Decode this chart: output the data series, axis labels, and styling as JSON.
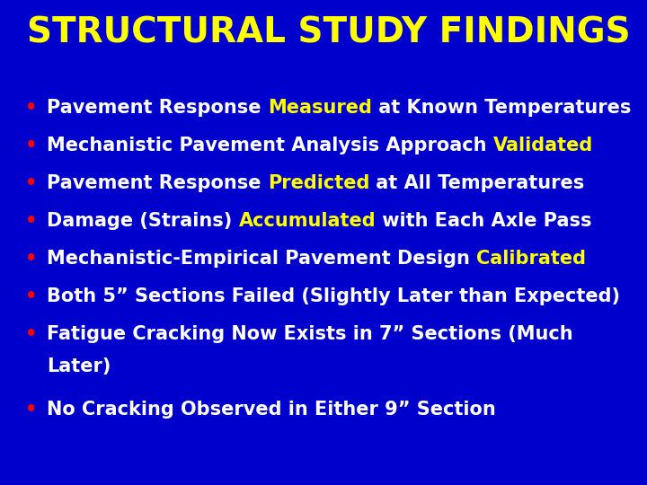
{
  "background_color": "#0000cc",
  "title": "STRUCTURAL STUDY FINDINGS",
  "title_color": "#ffff00",
  "title_fontsize": 28,
  "bullet_color": "#ff0000",
  "bullet_items": [
    {
      "parts": [
        {
          "text": "Pavement Response ",
          "color": "#ffffff"
        },
        {
          "text": "Measured",
          "color": "#ffff00"
        },
        {
          "text": " at Known Temperatures",
          "color": "#ffffff"
        }
      ]
    },
    {
      "parts": [
        {
          "text": "Mechanistic Pavement Analysis Approach ",
          "color": "#ffffff"
        },
        {
          "text": "Validated",
          "color": "#ffff00"
        }
      ]
    },
    {
      "parts": [
        {
          "text": "Pavement Response ",
          "color": "#ffffff"
        },
        {
          "text": "Predicted",
          "color": "#ffff00"
        },
        {
          "text": " at All Temperatures",
          "color": "#ffffff"
        }
      ]
    },
    {
      "parts": [
        {
          "text": "Damage (Strains) ",
          "color": "#ffffff"
        },
        {
          "text": "Accumulated",
          "color": "#ffff00"
        },
        {
          "text": " with Each Axle Pass",
          "color": "#ffffff"
        }
      ]
    },
    {
      "parts": [
        {
          "text": "Mechanistic-Empirical Pavement Design ",
          "color": "#ffffff"
        },
        {
          "text": "Calibrated",
          "color": "#ffff00"
        }
      ]
    },
    {
      "parts": [
        {
          "text": "Both 5” Sections Failed (Slightly Later than Expected)",
          "color": "#ffffff"
        }
      ]
    },
    {
      "parts": [
        {
          "text": "Fatigue Cracking Now Exists in 7” Sections (Much\nLater)",
          "color": "#ffffff"
        }
      ]
    },
    {
      "parts": [
        {
          "text": "No Cracking Observed in Either 9” Section",
          "color": "#ffffff"
        }
      ]
    }
  ],
  "text_fontsize": 15,
  "bullet_fontsize": 15,
  "fig_width": 7.2,
  "fig_height": 5.4,
  "dpi": 100
}
